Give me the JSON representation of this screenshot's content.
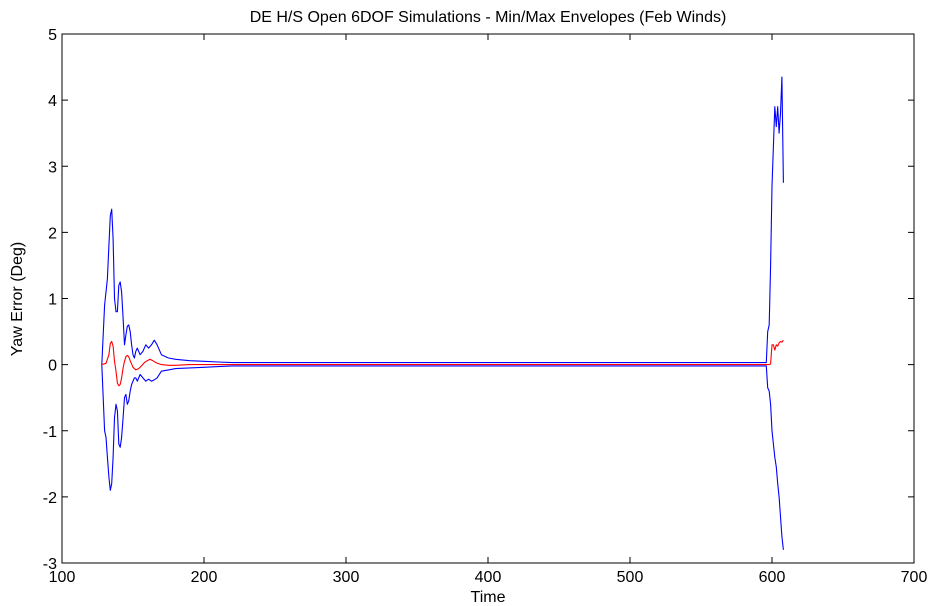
{
  "chart_data": {
    "type": "line",
    "title": "DE H/S Open 6DOF Simulations - Min/Max Envelopes (Feb Winds)",
    "xlabel": "Time",
    "ylabel": "Yaw Error (Deg)",
    "xlim": [
      100,
      700
    ],
    "ylim": [
      -3,
      5
    ],
    "xticks": [
      100,
      200,
      300,
      400,
      500,
      600,
      700
    ],
    "yticks": [
      -3,
      -2,
      -1,
      0,
      1,
      2,
      3,
      4,
      5
    ],
    "grid": false,
    "legend": "none",
    "series": [
      {
        "color": "#0000ff",
        "x": [
          128,
          130,
          131,
          132,
          133,
          134,
          135,
          136,
          137,
          138,
          139,
          140,
          141,
          142,
          143,
          144,
          145,
          146,
          147,
          148,
          149,
          150,
          151,
          152,
          153,
          155,
          157,
          159,
          161,
          163,
          165,
          167,
          170,
          175,
          180,
          190,
          200,
          210,
          220,
          300,
          400,
          500,
          590,
          596,
          597,
          598,
          599,
          600,
          601,
          602,
          603,
          604,
          605,
          606,
          607,
          608
        ],
        "y": [
          0.0,
          0.9,
          1.1,
          1.3,
          1.8,
          2.25,
          2.35,
          1.9,
          1.0,
          0.8,
          0.8,
          1.2,
          1.25,
          1.1,
          0.7,
          0.3,
          0.45,
          0.58,
          0.6,
          0.5,
          0.3,
          0.15,
          0.1,
          0.2,
          0.25,
          0.15,
          0.2,
          0.3,
          0.25,
          0.3,
          0.37,
          0.3,
          0.15,
          0.1,
          0.08,
          0.06,
          0.05,
          0.04,
          0.03,
          0.03,
          0.03,
          0.03,
          0.03,
          0.03,
          0.5,
          0.6,
          1.5,
          2.7,
          3.3,
          3.9,
          3.6,
          3.9,
          3.5,
          3.8,
          4.35,
          2.75
        ],
        "name": ""
      },
      {
        "color": "#0000ff",
        "x": [
          128,
          130,
          131,
          132,
          133,
          134,
          135,
          136,
          137,
          138,
          139,
          140,
          141,
          142,
          143,
          144,
          145,
          146,
          147,
          148,
          149,
          150,
          151,
          152,
          153,
          155,
          157,
          159,
          161,
          163,
          165,
          167,
          170,
          175,
          180,
          190,
          200,
          210,
          220,
          300,
          400,
          500,
          590,
          596,
          597,
          598,
          599,
          600,
          601,
          602,
          603,
          604,
          605,
          606,
          607,
          608
        ],
        "y": [
          0.0,
          -1.0,
          -1.1,
          -1.4,
          -1.7,
          -1.9,
          -1.8,
          -1.4,
          -0.8,
          -0.6,
          -0.7,
          -1.2,
          -1.25,
          -1.1,
          -0.8,
          -0.5,
          -0.45,
          -0.6,
          -0.55,
          -0.4,
          -0.3,
          -0.25,
          -0.2,
          -0.2,
          -0.25,
          -0.15,
          -0.2,
          -0.25,
          -0.22,
          -0.25,
          -0.23,
          -0.2,
          -0.1,
          -0.08,
          -0.06,
          -0.05,
          -0.04,
          -0.03,
          -0.02,
          -0.02,
          -0.02,
          -0.02,
          -0.02,
          -0.02,
          -0.35,
          -0.4,
          -0.6,
          -1.0,
          -1.2,
          -1.4,
          -1.55,
          -1.8,
          -2.0,
          -2.3,
          -2.6,
          -2.8
        ],
        "name": ""
      },
      {
        "color": "#ff0000",
        "x": [
          128,
          131,
          133,
          134,
          135,
          136,
          137,
          138,
          139,
          140,
          141,
          142,
          143,
          144,
          145,
          146,
          147,
          148,
          150,
          152,
          154,
          156,
          158,
          160,
          162,
          164,
          166,
          170,
          175,
          180,
          190,
          200,
          250,
          300,
          400,
          500,
          590,
          596,
          598,
          599,
          600,
          601,
          602,
          603,
          604,
          605,
          606,
          607,
          608
        ],
        "y": [
          0.0,
          0.02,
          0.15,
          0.32,
          0.35,
          0.28,
          0.05,
          -0.1,
          -0.28,
          -0.32,
          -0.3,
          -0.2,
          -0.05,
          0.05,
          0.12,
          0.14,
          0.12,
          0.06,
          -0.04,
          -0.08,
          -0.06,
          -0.02,
          0.03,
          0.06,
          0.08,
          0.06,
          0.03,
          0.0,
          -0.01,
          -0.01,
          0.0,
          0.0,
          0.0,
          0.0,
          0.0,
          0.0,
          0.0,
          0.0,
          0.0,
          0.01,
          0.3,
          0.3,
          0.22,
          0.3,
          0.28,
          0.33,
          0.35,
          0.34,
          0.37
        ],
        "name": ""
      }
    ]
  }
}
